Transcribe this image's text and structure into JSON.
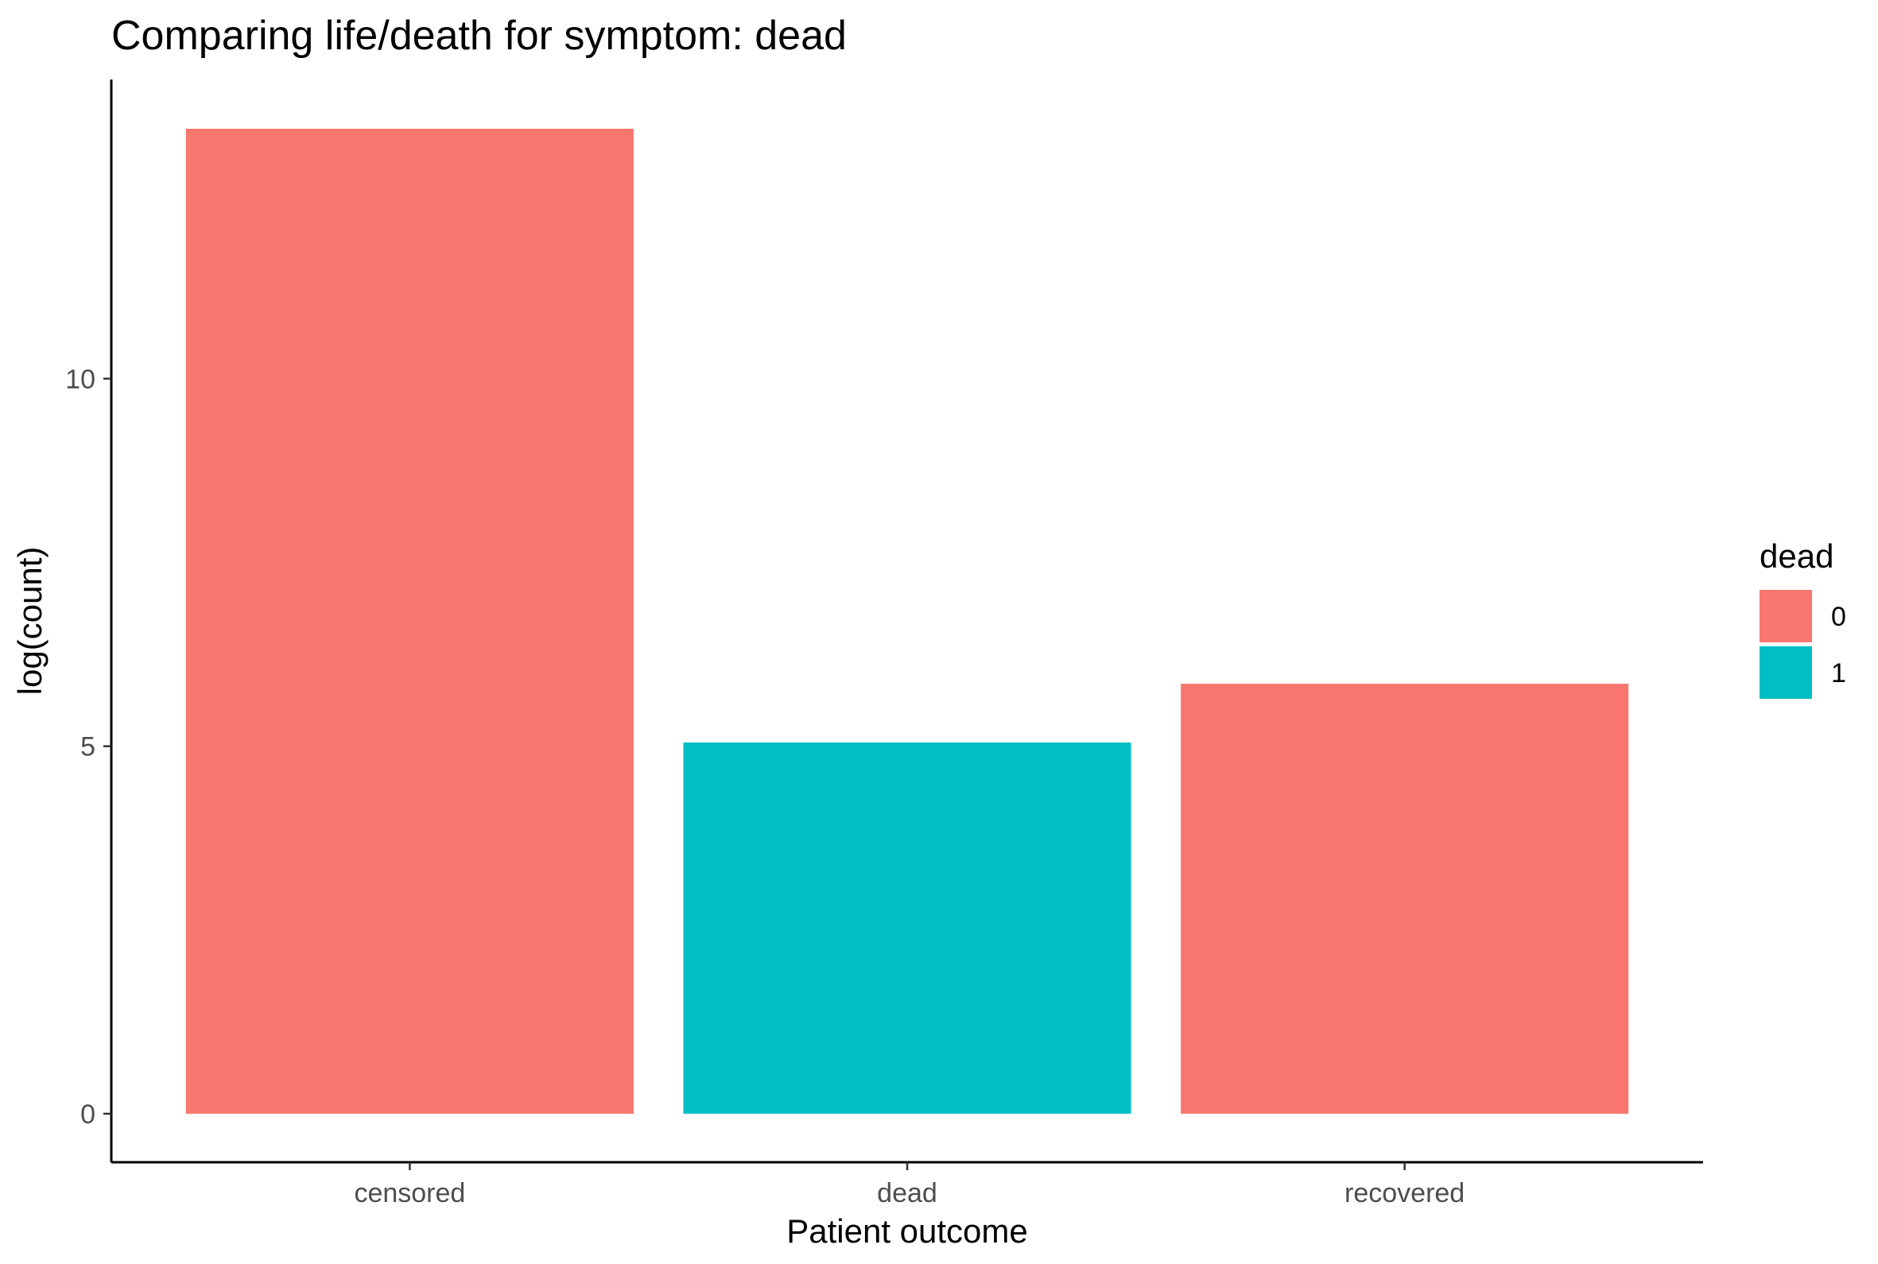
{
  "chart_data": {
    "type": "bar",
    "title": "Comparing life/death for symptom: dead",
    "xlabel": "Patient outcome",
    "ylabel": "log(count)",
    "categories": [
      "censored",
      "dead",
      "recovered"
    ],
    "values": [
      13.4,
      5.05,
      5.85
    ],
    "fill_group": [
      "0",
      "1",
      "0"
    ],
    "ylim": [
      -0.66,
      14.07
    ],
    "yticks": [
      0,
      5,
      10
    ],
    "ytick_labels": [
      "0",
      "5",
      "10"
    ],
    "grid": false,
    "legend": {
      "title": "dead",
      "placement": "right",
      "items": [
        {
          "label": "0",
          "color": "#F8766D"
        },
        {
          "label": "1",
          "color": "#00BFC4"
        }
      ]
    },
    "colors": {
      "0": "#F8766D",
      "1": "#00BFC4"
    }
  }
}
